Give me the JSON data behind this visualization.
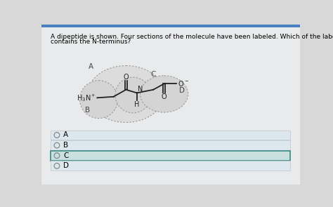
{
  "question_line1": "A dipeptide is shown. Four sections of the molecule have been labeled. Which of the labeled sections",
  "question_line2": "contains the N-terminus?",
  "bg_color": "#d8d8d8",
  "panel_bg": "#e4e4e4",
  "top_bar_color": "#4a7fc1",
  "answer_options": [
    "A",
    "B",
    "C",
    "D"
  ],
  "selected_answer": "C",
  "selected_bg": "#c8e0e0",
  "selected_border": "#3a8a80",
  "unselected_bg": "#dde8ee",
  "unselected_border": "#c0c8cc",
  "mol_color": "#222222",
  "label_color": "#444444",
  "circle_edge": "#999999",
  "circle_fill_outer": "#dcdcdc",
  "circle_fill_inner": "#d4d4d4",
  "title_fontsize": 6.5,
  "mol_fontsize": 7.0,
  "label_fontsize": 7.5,
  "option_fontsize": 7.5
}
